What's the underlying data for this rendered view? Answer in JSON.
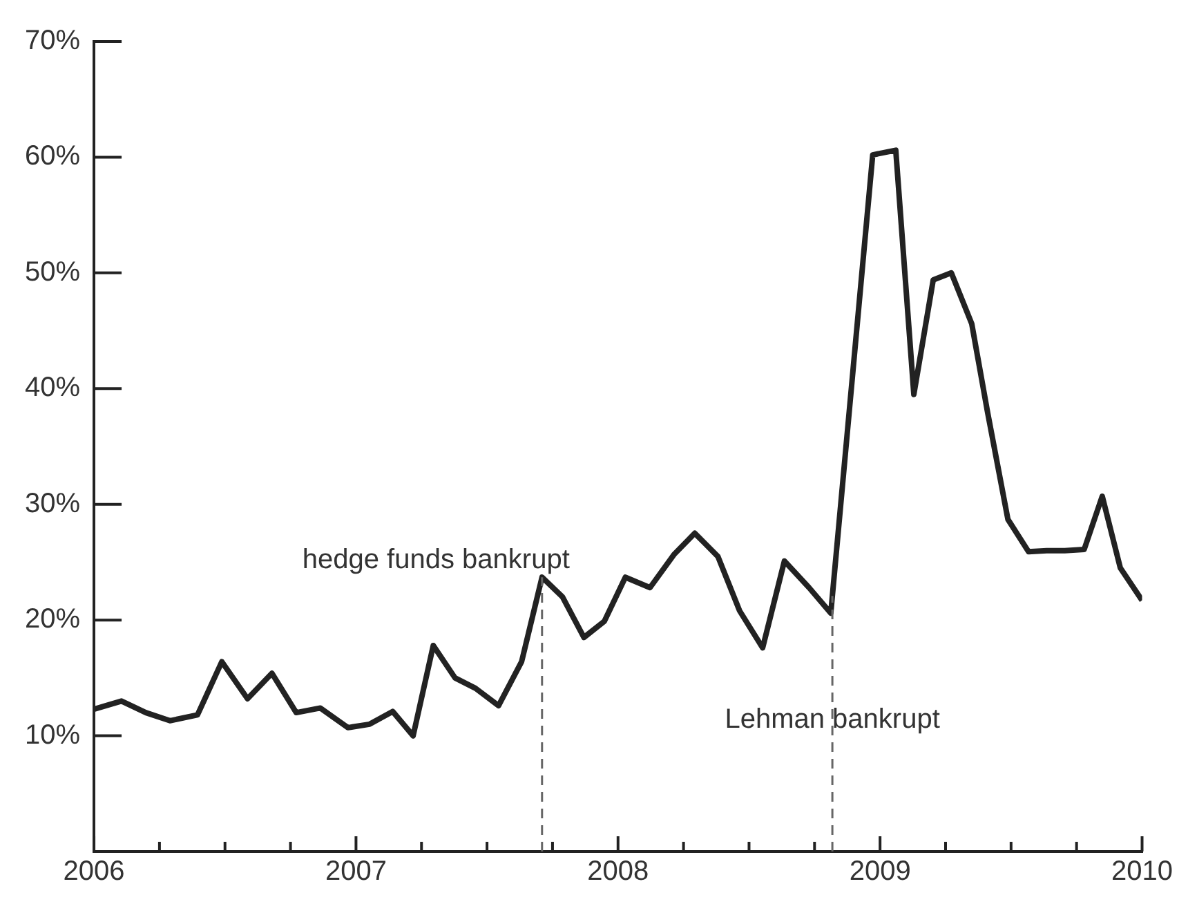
{
  "chart_data": {
    "type": "line",
    "x": [
      2006.0,
      2006.105,
      2006.198,
      2006.29,
      2006.395,
      2006.488,
      2006.586,
      2006.679,
      2006.772,
      2006.864,
      2006.969,
      2007.052,
      2007.14,
      2007.218,
      2007.295,
      2007.378,
      2007.456,
      2007.544,
      2007.632,
      2007.71,
      2007.788,
      2007.87,
      2007.948,
      2008.028,
      2008.122,
      2008.215,
      2008.293,
      2008.381,
      2008.464,
      2008.552,
      2008.635,
      2008.729,
      2008.812,
      2008.972,
      2009.06,
      2009.129,
      2009.203,
      2009.272,
      2009.35,
      2009.41,
      2009.488,
      2009.567,
      2009.636,
      2009.705,
      2009.779,
      2009.848,
      2009.917,
      2010.0
    ],
    "series": [
      {
        "color": "#222222",
        "values": [
          12.3,
          13.0,
          12.0,
          11.3,
          11.8,
          16.4,
          13.2,
          15.4,
          12.0,
          12.4,
          10.7,
          11.0,
          12.1,
          10.0,
          17.8,
          15.0,
          14.1,
          12.6,
          16.4,
          23.7,
          22.0,
          18.5,
          19.9,
          23.7,
          22.8,
          25.7,
          27.5,
          25.5,
          20.8,
          17.6,
          25.1,
          22.8,
          20.6,
          60.2,
          60.6,
          39.5,
          49.4,
          50.0,
          45.6,
          38.0,
          28.7,
          25.9,
          26.0,
          26.0,
          26.1,
          30.7,
          24.5,
          21.7
        ]
      }
    ],
    "xlim": [
      2006,
      2010
    ],
    "xticks": [
      2006,
      {
        "value": 2006.25,
        "label": null
      },
      {
        "value": 2006.5,
        "label": null
      },
      {
        "value": 2006.75,
        "label": null
      },
      2007,
      {
        "value": 2007.25,
        "label": null
      },
      {
        "value": 2007.5,
        "label": null
      },
      {
        "value": 2007.75,
        "label": null
      },
      2008,
      {
        "value": 2008.25,
        "label": null
      },
      {
        "value": 2008.5,
        "label": null
      },
      {
        "value": 2008.75,
        "label": null
      },
      2009,
      {
        "value": 2009.25,
        "label": null
      },
      {
        "value": 2009.5,
        "label": null
      },
      {
        "value": 2009.75,
        "label": null
      },
      2010
    ],
    "ylim": [
      0,
      70
    ],
    "yticks": [
      {
        "value": 10,
        "label": "10%"
      },
      {
        "value": 20,
        "label": "20%"
      },
      {
        "value": 30,
        "label": "30%"
      },
      {
        "value": 40,
        "label": "40%"
      },
      {
        "value": 50,
        "label": "50%"
      },
      {
        "value": 60,
        "label": "60%"
      },
      {
        "value": 70,
        "label": "70%"
      }
    ],
    "ref_lines": [
      {
        "axis": "x",
        "value": 2007.71,
        "label": "hedge funds bankrupt",
        "line_style": "dashed",
        "color": "#666666"
      },
      {
        "axis": "x",
        "value": 2008.818,
        "label": "Lehman bankrupt",
        "line_style": "dashed",
        "color": "#666666"
      }
    ],
    "grid": false,
    "legend": false,
    "marker": "none",
    "line_style": "solid"
  }
}
